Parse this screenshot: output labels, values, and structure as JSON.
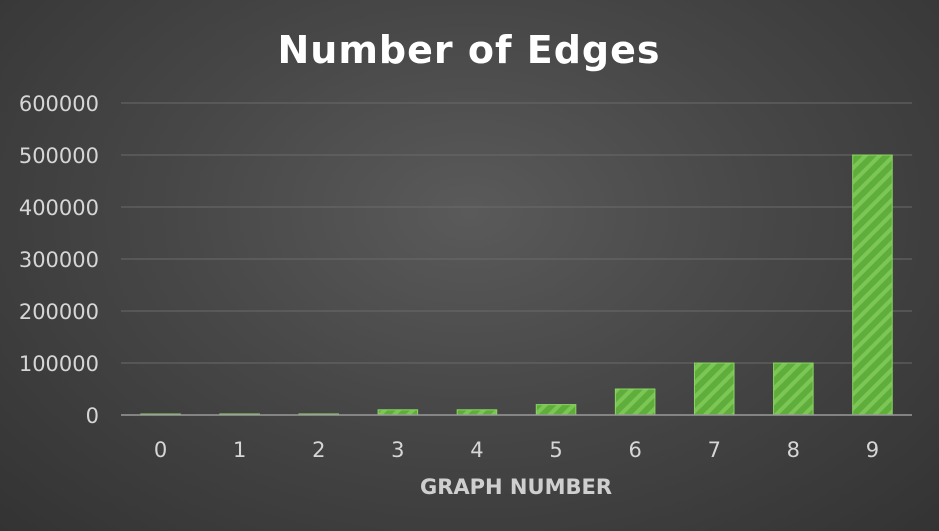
{
  "chart_data": {
    "type": "bar",
    "title": "Number of Edges",
    "xlabel": "GRAPH NUMBER",
    "ylabel": "",
    "categories": [
      "0",
      "1",
      "2",
      "3",
      "4",
      "5",
      "6",
      "7",
      "8",
      "9"
    ],
    "values": [
      1000,
      2000,
      2000,
      10000,
      10000,
      20000,
      50000,
      100000,
      100000,
      500000
    ],
    "ylim": [
      0,
      600000
    ],
    "yticks": [
      "0",
      "100000",
      "200000",
      "300000",
      "400000",
      "500000",
      "600000"
    ],
    "grid": true,
    "legend": "none",
    "colors": {
      "bar": "#5fae3c",
      "bar_stripe": "#7cc656",
      "bar_edge": "#8bd563",
      "background": "#474747"
    }
  }
}
